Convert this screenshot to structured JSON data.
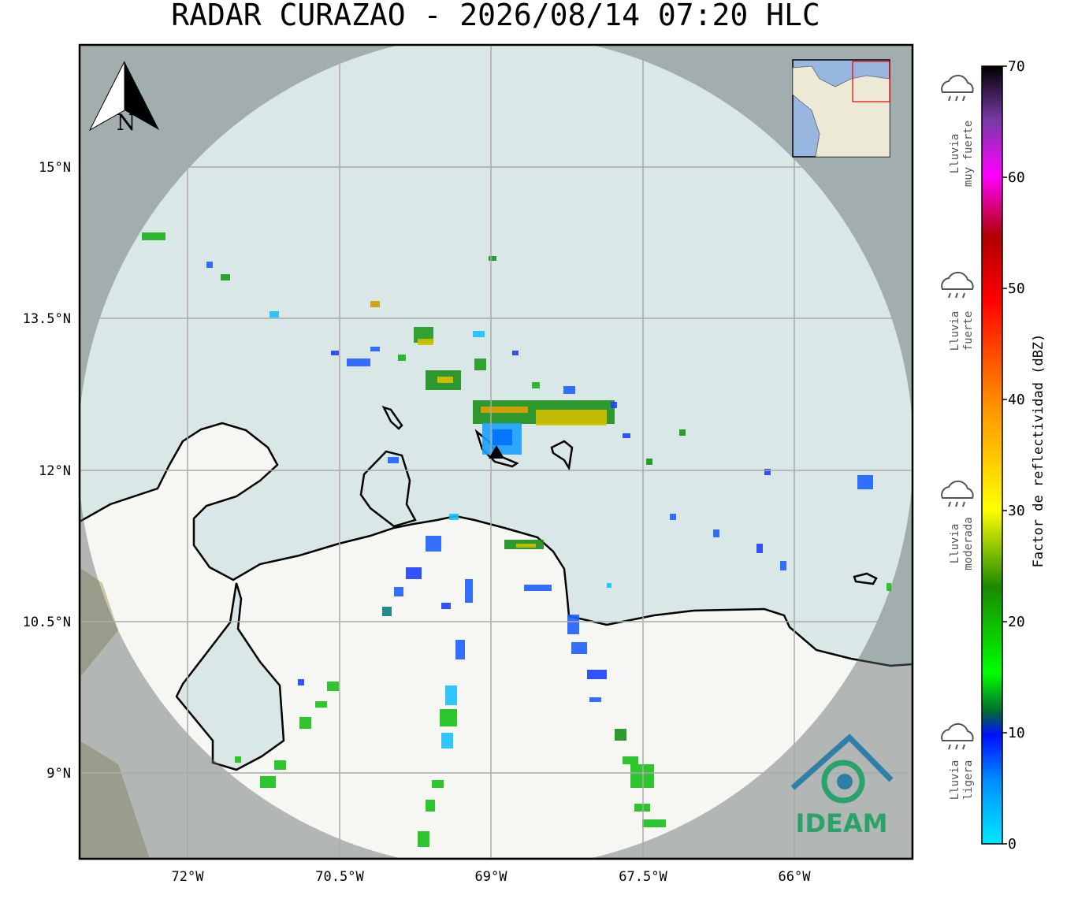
{
  "title": "RADAR CURAZAO - 2026/08/14 07:20 HLC",
  "map": {
    "lat_labels": [
      "15°N",
      "13.5°N",
      "12°N",
      "10.5°N",
      "9°N"
    ],
    "lon_labels": [
      "72°W",
      "70.5°W",
      "69°W",
      "67.5°W",
      "66°W"
    ],
    "compass": "N",
    "logo": "IDEAM"
  },
  "colorbar": {
    "label": "Factor de reflectividad (dBZ)",
    "range": [
      0,
      70
    ],
    "ticks": [
      0,
      10,
      20,
      30,
      40,
      50,
      60,
      70
    ]
  },
  "rain_categories": [
    [
      "Lluvia",
      "muy fuerte"
    ],
    [
      "Lluvia",
      "fuerte"
    ],
    [
      "Lluvia",
      "moderada"
    ],
    [
      "Lluvia",
      "ligera"
    ]
  ]
}
